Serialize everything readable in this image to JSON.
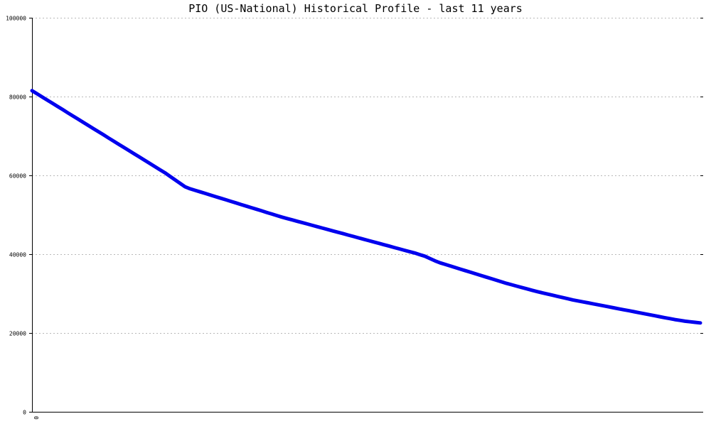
{
  "chart_data": {
    "type": "line",
    "title": "PIO (US-National) Historical Profile - last 11 years",
    "xlabel": "",
    "ylabel": "",
    "ylim": [
      0,
      100000
    ],
    "yticks": [
      0,
      20000,
      40000,
      60000,
      80000,
      100000
    ],
    "ytick_labels": [
      "0",
      "20000",
      "40000",
      "60000",
      "80000",
      "100000"
    ],
    "xtick_labels": [
      "0"
    ],
    "grid": true,
    "series": [
      {
        "color": "#0000ee",
        "x": [
          0,
          1,
          2,
          3,
          4,
          5,
          6,
          7,
          8,
          9,
          10,
          11,
          12,
          13,
          14,
          15,
          16,
          17,
          18,
          19,
          20,
          21,
          22,
          23,
          24,
          25,
          26,
          27,
          28,
          29,
          30,
          31,
          32,
          33,
          34,
          35,
          36,
          37,
          38,
          39,
          40,
          41,
          42,
          43,
          44,
          45,
          46,
          47,
          48,
          49,
          50,
          51,
          52,
          53,
          54,
          55,
          56,
          57,
          58,
          59,
          60,
          61,
          62,
          63,
          64,
          65,
          66,
          67,
          68,
          69,
          70,
          71,
          72,
          73,
          74,
          75,
          76,
          77,
          78,
          79,
          80,
          81,
          82,
          83,
          84,
          85,
          86,
          87,
          88,
          89,
          90,
          91,
          92,
          93,
          94,
          95,
          96,
          97,
          98,
          99,
          100,
          101,
          102,
          103,
          104,
          105,
          106,
          107,
          108,
          109,
          110,
          111,
          112,
          113,
          114,
          115,
          116,
          117,
          118,
          119,
          120,
          121,
          122,
          123,
          124,
          125,
          126,
          127,
          128,
          129,
          130,
          131
        ],
        "y": [
          81500,
          80700,
          79900,
          79100,
          78300,
          77500,
          76700,
          75900,
          75100,
          74300,
          73500,
          72700,
          71900,
          71100,
          70300,
          69500,
          68700,
          67900,
          67100,
          66300,
          65500,
          64700,
          63900,
          63100,
          62300,
          61500,
          60700,
          59800,
          58900,
          58000,
          57100,
          56600,
          56200,
          55800,
          55400,
          55000,
          54600,
          54200,
          53800,
          53400,
          53000,
          52600,
          52200,
          51800,
          51400,
          51000,
          50600,
          50200,
          49800,
          49400,
          49050,
          48700,
          48350,
          48000,
          47650,
          47300,
          46950,
          46600,
          46250,
          45900,
          45550,
          45200,
          44850,
          44500,
          44150,
          43800,
          43450,
          43100,
          42750,
          42400,
          42050,
          41700,
          41350,
          41000,
          40650,
          40300,
          39900,
          39500,
          38900,
          38300,
          37800,
          37400,
          37000,
          36600,
          36200,
          35800,
          35400,
          35000,
          34600,
          34200,
          33800,
          33400,
          33000,
          32600,
          32250,
          31900,
          31550,
          31200,
          30850,
          30500,
          30200,
          29900,
          29600,
          29300,
          29000,
          28700,
          28400,
          28150,
          27900,
          27650,
          27400,
          27150,
          26900,
          26650,
          26400,
          26150,
          25900,
          25650,
          25400,
          25150,
          24900,
          24650,
          24400,
          24150,
          23900,
          23650,
          23400,
          23200,
          23000,
          22850,
          22700,
          22550
        ]
      }
    ]
  }
}
